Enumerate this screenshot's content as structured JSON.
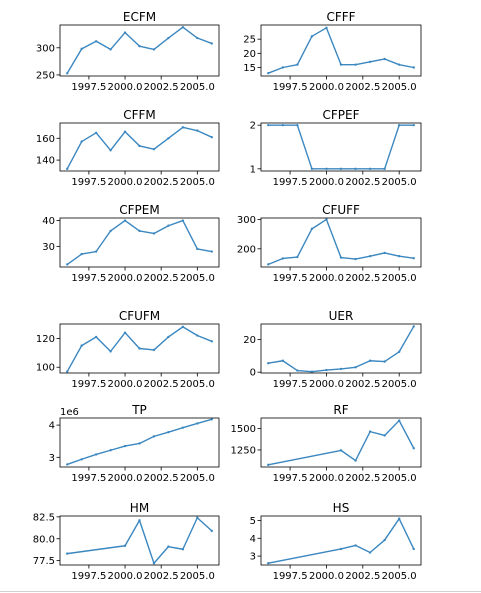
{
  "style": {
    "line_color": "#3b87c0",
    "background": "#ffffff"
  },
  "chart_data": [
    {
      "type": "line",
      "title": "ECFM",
      "x": [
        1996,
        1997,
        1998,
        1999,
        2000,
        2001,
        2002,
        2003,
        2004,
        2005,
        2006
      ],
      "y": [
        253,
        298,
        312,
        297,
        328,
        303,
        297,
        318,
        338,
        318,
        308
      ],
      "xlim": [
        1995.5,
        2006.5
      ],
      "ylim": [
        248,
        342
      ],
      "xticks": [
        1997.5,
        2000.0,
        2002.5,
        2005.0
      ],
      "xtick_labels": [
        "1997.5",
        "2000.0",
        "2002.5",
        "2005.0"
      ],
      "yticks": [
        250,
        300
      ],
      "ytick_labels": [
        "250",
        "300"
      ]
    },
    {
      "type": "line",
      "title": "CFFF",
      "x": [
        1996,
        1997,
        1998,
        1999,
        2000,
        2001,
        2002,
        2003,
        2004,
        2005,
        2006
      ],
      "y": [
        13,
        15,
        16,
        26,
        29,
        16,
        16,
        17,
        18,
        16,
        15
      ],
      "xlim": [
        1995.5,
        2006.5
      ],
      "ylim": [
        12,
        30
      ],
      "xticks": [
        1997.5,
        2000.0,
        2002.5,
        2005.0
      ],
      "xtick_labels": [
        "1997.5",
        "2000.0",
        "2002.5",
        "2005.0"
      ],
      "yticks": [
        15,
        20,
        25
      ],
      "ytick_labels": [
        "15",
        "20",
        "25"
      ]
    },
    {
      "type": "line",
      "title": "CFFM",
      "x": [
        1996,
        1997,
        1998,
        1999,
        2000,
        2001,
        2002,
        2003,
        2004,
        2005,
        2006
      ],
      "y": [
        132,
        157,
        165,
        149,
        166,
        153,
        150,
        160,
        170,
        167,
        161
      ],
      "xlim": [
        1995.5,
        2006.5
      ],
      "ylim": [
        130,
        174
      ],
      "xticks": [
        1997.5,
        2000.0,
        2002.5,
        2005.0
      ],
      "xtick_labels": [
        "1997.5",
        "2000.0",
        "2002.5",
        "2005.0"
      ],
      "yticks": [
        140,
        160
      ],
      "ytick_labels": [
        "140",
        "160"
      ]
    },
    {
      "type": "line",
      "title": "CFPEF",
      "x": [
        1996,
        1997,
        1998,
        1999,
        2000,
        2001,
        2002,
        2003,
        2004,
        2005,
        2006
      ],
      "y": [
        2,
        2,
        2,
        1,
        1,
        1,
        1,
        1,
        1,
        2,
        2
      ],
      "xlim": [
        1995.5,
        2006.5
      ],
      "ylim": [
        0.95,
        2.05
      ],
      "xticks": [
        1997.5,
        2000.0,
        2002.5,
        2005.0
      ],
      "xtick_labels": [
        "1997.5",
        "2000.0",
        "2002.5",
        "2005.0"
      ],
      "yticks": [
        1,
        2
      ],
      "ytick_labels": [
        "1",
        "2"
      ]
    },
    {
      "type": "line",
      "title": "CFPEM",
      "x": [
        1996,
        1997,
        1998,
        1999,
        2000,
        2001,
        2002,
        2003,
        2004,
        2005,
        2006
      ],
      "y": [
        23,
        27,
        28,
        36,
        40,
        36,
        35,
        38,
        40,
        29,
        28
      ],
      "xlim": [
        1995.5,
        2006.5
      ],
      "ylim": [
        22,
        41
      ],
      "xticks": [
        1997.5,
        2000.0,
        2002.5,
        2005.0
      ],
      "xtick_labels": [
        "1997.5",
        "2000.0",
        "2002.5",
        "2005.0"
      ],
      "yticks": [
        30,
        40
      ],
      "ytick_labels": [
        "30",
        "40"
      ]
    },
    {
      "type": "line",
      "title": "CFUFF",
      "x": [
        1996,
        1997,
        1998,
        1999,
        2000,
        2001,
        2002,
        2003,
        2004,
        2005,
        2006
      ],
      "y": [
        147,
        167,
        172,
        268,
        300,
        170,
        165,
        175,
        186,
        175,
        168
      ],
      "xlim": [
        1995.5,
        2006.5
      ],
      "ylim": [
        138,
        305
      ],
      "xticks": [
        1997.5,
        2000.0,
        2002.5,
        2005.0
      ],
      "xtick_labels": [
        "1997.5",
        "2000.0",
        "2002.5",
        "2005.0"
      ],
      "yticks": [
        200,
        300
      ],
      "ytick_labels": [
        "200",
        "300"
      ]
    },
    {
      "type": "line",
      "title": "CFUFM",
      "x": [
        1996,
        1997,
        1998,
        1999,
        2000,
        2001,
        2002,
        2003,
        2004,
        2005,
        2006
      ],
      "y": [
        97,
        115,
        121,
        111,
        124,
        113,
        112,
        121,
        128,
        122,
        118
      ],
      "xlim": [
        1995.5,
        2006.5
      ],
      "ylim": [
        96,
        130
      ],
      "xticks": [
        1997.5,
        2000.0,
        2002.5,
        2005.0
      ],
      "xtick_labels": [
        "1997.5",
        "2000.0",
        "2002.5",
        "2005.0"
      ],
      "yticks": [
        100,
        120
      ],
      "ytick_labels": [
        "100",
        "120"
      ]
    },
    {
      "type": "line",
      "title": "UER",
      "x": [
        1996,
        1997,
        1998,
        1999,
        2000,
        2001,
        2002,
        2003,
        2004,
        2005,
        2006
      ],
      "y": [
        5.5,
        7,
        1,
        0.3,
        1.3,
        2,
        3,
        7,
        6.5,
        12.5,
        28
      ],
      "xlim": [
        1995.5,
        2006.5
      ],
      "ylim": [
        -0.5,
        29.5
      ],
      "xticks": [
        1997.5,
        2000.0,
        2002.5,
        2005.0
      ],
      "xtick_labels": [
        "1997.5",
        "2000.0",
        "2002.5",
        "2005.0"
      ],
      "yticks": [
        0,
        20
      ],
      "ytick_labels": [
        "0",
        "20"
      ]
    },
    {
      "type": "line",
      "title": "TP",
      "x": [
        1996,
        1997,
        1998,
        1999,
        2000,
        2001,
        2002,
        2003,
        2004,
        2005,
        2006
      ],
      "y": [
        2.78,
        2.94,
        3.09,
        3.22,
        3.35,
        3.43,
        3.65,
        3.78,
        3.92,
        4.05,
        4.18
      ],
      "xlim": [
        1995.5,
        2006.5
      ],
      "ylim": [
        2.7,
        4.22
      ],
      "xticks": [
        1997.5,
        2000.0,
        2002.5,
        2005.0
      ],
      "xtick_labels": [
        "1997.5",
        "2000.0",
        "2002.5",
        "2005.0"
      ],
      "yticks": [
        3,
        4
      ],
      "ytick_labels": [
        "3",
        "4"
      ],
      "offset_text": "1e6"
    },
    {
      "type": "line",
      "title": "RF",
      "x": [
        1996,
        2001,
        2002,
        2003,
        2004,
        2005,
        2006
      ],
      "y": [
        1075,
        1245,
        1125,
        1465,
        1420,
        1595,
        1270
      ],
      "xlim": [
        1995.5,
        2006.5
      ],
      "ylim": [
        1050,
        1625
      ],
      "xticks": [
        1997.5,
        2000.0,
        2002.5,
        2005.0
      ],
      "xtick_labels": [
        "1997.5",
        "2000.0",
        "2002.5",
        "2005.0"
      ],
      "yticks": [
        1250,
        1500
      ],
      "ytick_labels": [
        "1250",
        "1500"
      ]
    },
    {
      "type": "line",
      "title": "HM",
      "x": [
        1996,
        2000,
        2001,
        2002,
        2003,
        2004,
        2005,
        2006
      ],
      "y": [
        78.3,
        79.2,
        82.1,
        77.2,
        79.1,
        78.8,
        82.4,
        80.9
      ],
      "xlim": [
        1995.5,
        2006.5
      ],
      "ylim": [
        77,
        82.6
      ],
      "xticks": [
        1997.5,
        2000.0,
        2002.5,
        2005.0
      ],
      "xtick_labels": [
        "1997.5",
        "2000.0",
        "2002.5",
        "2005.0"
      ],
      "yticks": [
        77.5,
        80.0,
        82.5
      ],
      "ytick_labels": [
        "77.5",
        "80.0",
        "82.5"
      ]
    },
    {
      "type": "line",
      "title": "HS",
      "x": [
        1996,
        2001,
        2002,
        2003,
        2004,
        2005,
        2006
      ],
      "y": [
        2.6,
        3.4,
        3.6,
        3.2,
        3.9,
        5.1,
        3.4
      ],
      "xlim": [
        1995.5,
        2006.5
      ],
      "ylim": [
        2.5,
        5.25
      ],
      "xticks": [
        1997.5,
        2000.0,
        2002.5,
        2005.0
      ],
      "xtick_labels": [
        "1997.5",
        "2000.0",
        "2002.5",
        "2005.0"
      ],
      "yticks": [
        3,
        4,
        5
      ],
      "ytick_labels": [
        "3",
        "4",
        "5"
      ]
    }
  ]
}
